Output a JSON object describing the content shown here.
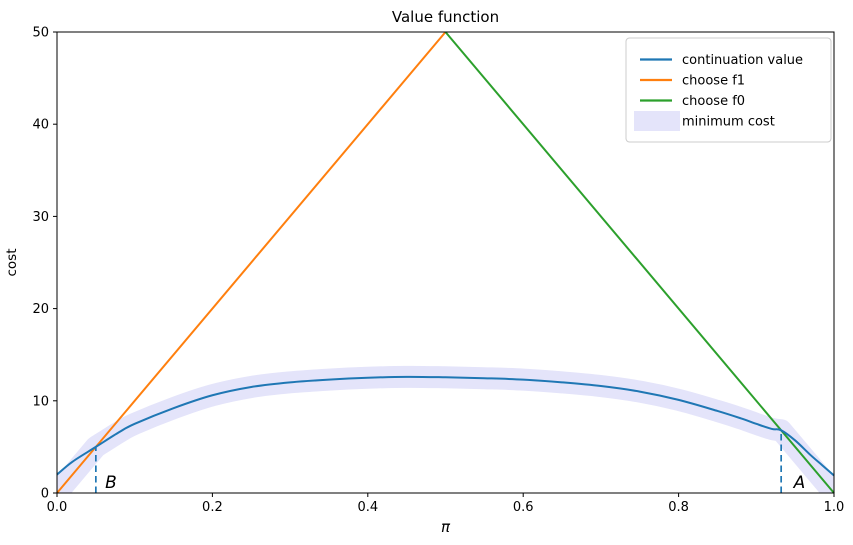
{
  "chart_data": {
    "type": "line",
    "title": "Value function",
    "xlabel": "π",
    "ylabel": "cost",
    "xlim": [
      0.0,
      1.0
    ],
    "ylim": [
      0,
      50
    ],
    "grid": false,
    "xticks": [
      0.0,
      0.2,
      0.4,
      0.6,
      0.8,
      1.0
    ],
    "xtick_labels": [
      "0.0",
      "0.2",
      "0.4",
      "0.6",
      "0.8",
      "1.0"
    ],
    "yticks": [
      0,
      10,
      20,
      30,
      40,
      50
    ],
    "ytick_labels": [
      "0",
      "10",
      "20",
      "30",
      "40",
      "50"
    ],
    "legend_position": "upper right",
    "series": [
      {
        "name": "continuation value",
        "kind": "line",
        "color": "#1f77b4",
        "x": [
          0.0,
          0.02,
          0.05,
          0.08,
          0.1,
          0.15,
          0.2,
          0.25,
          0.3,
          0.35,
          0.4,
          0.45,
          0.5,
          0.55,
          0.6,
          0.65,
          0.7,
          0.75,
          0.8,
          0.85,
          0.88,
          0.9,
          0.92,
          0.932,
          0.95,
          0.97,
          0.985,
          1.0
        ],
        "y": [
          2.0,
          3.4,
          5.0,
          6.6,
          7.5,
          9.2,
          10.6,
          11.5,
          12.0,
          12.3,
          12.5,
          12.6,
          12.55,
          12.45,
          12.3,
          12.0,
          11.6,
          11.0,
          10.1,
          8.9,
          8.1,
          7.5,
          6.95,
          6.8,
          5.7,
          4.1,
          3.0,
          1.9
        ]
      },
      {
        "name": "choose f1",
        "kind": "line",
        "color": "#ff7f0e",
        "x": [
          0.0,
          0.5
        ],
        "y": [
          0,
          50
        ]
      },
      {
        "name": "choose f0",
        "kind": "line",
        "color": "#2ca02c",
        "x": [
          0.5,
          1.0
        ],
        "y": [
          50,
          0
        ]
      },
      {
        "name": "minimum cost",
        "kind": "band",
        "color": "#e4e4fa",
        "band_width": 22,
        "x": [
          0.0,
          0.05,
          0.08,
          0.1,
          0.15,
          0.2,
          0.25,
          0.3,
          0.35,
          0.4,
          0.45,
          0.5,
          0.55,
          0.6,
          0.65,
          0.7,
          0.75,
          0.8,
          0.85,
          0.88,
          0.9,
          0.92,
          0.932,
          1.0
        ],
        "y": [
          0,
          5.0,
          6.6,
          7.5,
          9.2,
          10.6,
          11.5,
          12.0,
          12.3,
          12.5,
          12.6,
          12.55,
          12.45,
          12.3,
          12.0,
          11.6,
          11.0,
          10.1,
          8.9,
          8.1,
          7.5,
          6.95,
          6.8,
          0
        ]
      }
    ],
    "threshold_lines": [
      {
        "name": "B-threshold",
        "x": 0.05,
        "y_bottom": 0,
        "y_top": 5.0,
        "color": "#1f77b4",
        "style": "dashed"
      },
      {
        "name": "A-threshold",
        "x": 0.932,
        "y_bottom": 0,
        "y_top": 6.8,
        "color": "#1f77b4",
        "style": "dashed"
      }
    ],
    "annotations": [
      {
        "label": "B",
        "x": 0.062,
        "y": 0.55
      },
      {
        "label": "A",
        "x": 0.948,
        "y": 0.55
      }
    ],
    "legend": {
      "items": [
        {
          "label": "continuation value",
          "swatch": "line",
          "color": "#1f77b4"
        },
        {
          "label": "choose f1",
          "swatch": "line",
          "color": "#ff7f0e"
        },
        {
          "label": "choose f0",
          "swatch": "line",
          "color": "#2ca02c"
        },
        {
          "label": "minimum cost",
          "swatch": "patch",
          "color": "#e4e4fa"
        }
      ]
    }
  }
}
